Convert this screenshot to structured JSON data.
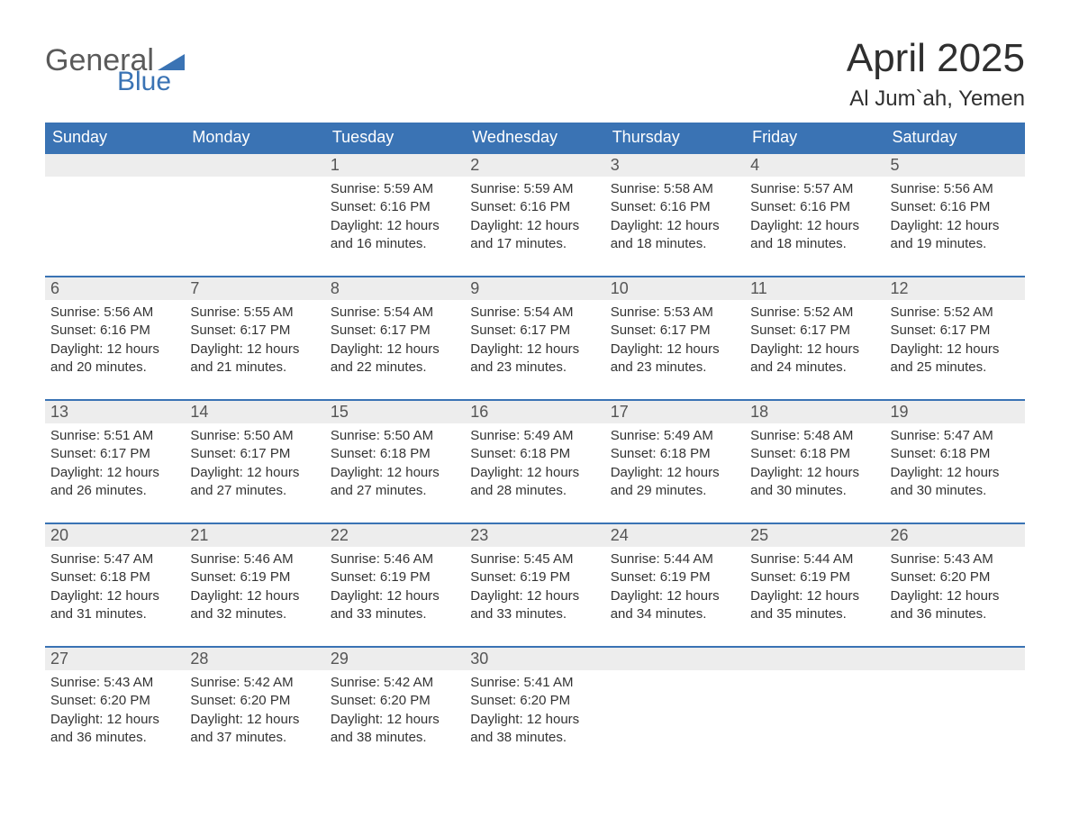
{
  "logo": {
    "word1": "General",
    "word2": "Blue"
  },
  "title": "April 2025",
  "subtitle": "Al Jum`ah, Yemen",
  "colors": {
    "header_bg": "#3a73b4",
    "header_fg": "#ffffff",
    "daynum_bg": "#ededed",
    "text": "#333333",
    "row_border": "#3a73b4"
  },
  "type": "calendar-table",
  "columns": [
    "Sunday",
    "Monday",
    "Tuesday",
    "Wednesday",
    "Thursday",
    "Friday",
    "Saturday"
  ],
  "weeks": [
    [
      {
        "day": "",
        "sunrise": "",
        "sunset": "",
        "daylight": ""
      },
      {
        "day": "",
        "sunrise": "",
        "sunset": "",
        "daylight": ""
      },
      {
        "day": "1",
        "sunrise": "Sunrise: 5:59 AM",
        "sunset": "Sunset: 6:16 PM",
        "daylight": "Daylight: 12 hours and 16 minutes."
      },
      {
        "day": "2",
        "sunrise": "Sunrise: 5:59 AM",
        "sunset": "Sunset: 6:16 PM",
        "daylight": "Daylight: 12 hours and 17 minutes."
      },
      {
        "day": "3",
        "sunrise": "Sunrise: 5:58 AM",
        "sunset": "Sunset: 6:16 PM",
        "daylight": "Daylight: 12 hours and 18 minutes."
      },
      {
        "day": "4",
        "sunrise": "Sunrise: 5:57 AM",
        "sunset": "Sunset: 6:16 PM",
        "daylight": "Daylight: 12 hours and 18 minutes."
      },
      {
        "day": "5",
        "sunrise": "Sunrise: 5:56 AM",
        "sunset": "Sunset: 6:16 PM",
        "daylight": "Daylight: 12 hours and 19 minutes."
      }
    ],
    [
      {
        "day": "6",
        "sunrise": "Sunrise: 5:56 AM",
        "sunset": "Sunset: 6:16 PM",
        "daylight": "Daylight: 12 hours and 20 minutes."
      },
      {
        "day": "7",
        "sunrise": "Sunrise: 5:55 AM",
        "sunset": "Sunset: 6:17 PM",
        "daylight": "Daylight: 12 hours and 21 minutes."
      },
      {
        "day": "8",
        "sunrise": "Sunrise: 5:54 AM",
        "sunset": "Sunset: 6:17 PM",
        "daylight": "Daylight: 12 hours and 22 minutes."
      },
      {
        "day": "9",
        "sunrise": "Sunrise: 5:54 AM",
        "sunset": "Sunset: 6:17 PM",
        "daylight": "Daylight: 12 hours and 23 minutes."
      },
      {
        "day": "10",
        "sunrise": "Sunrise: 5:53 AM",
        "sunset": "Sunset: 6:17 PM",
        "daylight": "Daylight: 12 hours and 23 minutes."
      },
      {
        "day": "11",
        "sunrise": "Sunrise: 5:52 AM",
        "sunset": "Sunset: 6:17 PM",
        "daylight": "Daylight: 12 hours and 24 minutes."
      },
      {
        "day": "12",
        "sunrise": "Sunrise: 5:52 AM",
        "sunset": "Sunset: 6:17 PM",
        "daylight": "Daylight: 12 hours and 25 minutes."
      }
    ],
    [
      {
        "day": "13",
        "sunrise": "Sunrise: 5:51 AM",
        "sunset": "Sunset: 6:17 PM",
        "daylight": "Daylight: 12 hours and 26 minutes."
      },
      {
        "day": "14",
        "sunrise": "Sunrise: 5:50 AM",
        "sunset": "Sunset: 6:17 PM",
        "daylight": "Daylight: 12 hours and 27 minutes."
      },
      {
        "day": "15",
        "sunrise": "Sunrise: 5:50 AM",
        "sunset": "Sunset: 6:18 PM",
        "daylight": "Daylight: 12 hours and 27 minutes."
      },
      {
        "day": "16",
        "sunrise": "Sunrise: 5:49 AM",
        "sunset": "Sunset: 6:18 PM",
        "daylight": "Daylight: 12 hours and 28 minutes."
      },
      {
        "day": "17",
        "sunrise": "Sunrise: 5:49 AM",
        "sunset": "Sunset: 6:18 PM",
        "daylight": "Daylight: 12 hours and 29 minutes."
      },
      {
        "day": "18",
        "sunrise": "Sunrise: 5:48 AM",
        "sunset": "Sunset: 6:18 PM",
        "daylight": "Daylight: 12 hours and 30 minutes."
      },
      {
        "day": "19",
        "sunrise": "Sunrise: 5:47 AM",
        "sunset": "Sunset: 6:18 PM",
        "daylight": "Daylight: 12 hours and 30 minutes."
      }
    ],
    [
      {
        "day": "20",
        "sunrise": "Sunrise: 5:47 AM",
        "sunset": "Sunset: 6:18 PM",
        "daylight": "Daylight: 12 hours and 31 minutes."
      },
      {
        "day": "21",
        "sunrise": "Sunrise: 5:46 AM",
        "sunset": "Sunset: 6:19 PM",
        "daylight": "Daylight: 12 hours and 32 minutes."
      },
      {
        "day": "22",
        "sunrise": "Sunrise: 5:46 AM",
        "sunset": "Sunset: 6:19 PM",
        "daylight": "Daylight: 12 hours and 33 minutes."
      },
      {
        "day": "23",
        "sunrise": "Sunrise: 5:45 AM",
        "sunset": "Sunset: 6:19 PM",
        "daylight": "Daylight: 12 hours and 33 minutes."
      },
      {
        "day": "24",
        "sunrise": "Sunrise: 5:44 AM",
        "sunset": "Sunset: 6:19 PM",
        "daylight": "Daylight: 12 hours and 34 minutes."
      },
      {
        "day": "25",
        "sunrise": "Sunrise: 5:44 AM",
        "sunset": "Sunset: 6:19 PM",
        "daylight": "Daylight: 12 hours and 35 minutes."
      },
      {
        "day": "26",
        "sunrise": "Sunrise: 5:43 AM",
        "sunset": "Sunset: 6:20 PM",
        "daylight": "Daylight: 12 hours and 36 minutes."
      }
    ],
    [
      {
        "day": "27",
        "sunrise": "Sunrise: 5:43 AM",
        "sunset": "Sunset: 6:20 PM",
        "daylight": "Daylight: 12 hours and 36 minutes."
      },
      {
        "day": "28",
        "sunrise": "Sunrise: 5:42 AM",
        "sunset": "Sunset: 6:20 PM",
        "daylight": "Daylight: 12 hours and 37 minutes."
      },
      {
        "day": "29",
        "sunrise": "Sunrise: 5:42 AM",
        "sunset": "Sunset: 6:20 PM",
        "daylight": "Daylight: 12 hours and 38 minutes."
      },
      {
        "day": "30",
        "sunrise": "Sunrise: 5:41 AM",
        "sunset": "Sunset: 6:20 PM",
        "daylight": "Daylight: 12 hours and 38 minutes."
      },
      {
        "day": "",
        "sunrise": "",
        "sunset": "",
        "daylight": ""
      },
      {
        "day": "",
        "sunrise": "",
        "sunset": "",
        "daylight": ""
      },
      {
        "day": "",
        "sunrise": "",
        "sunset": "",
        "daylight": ""
      }
    ]
  ]
}
